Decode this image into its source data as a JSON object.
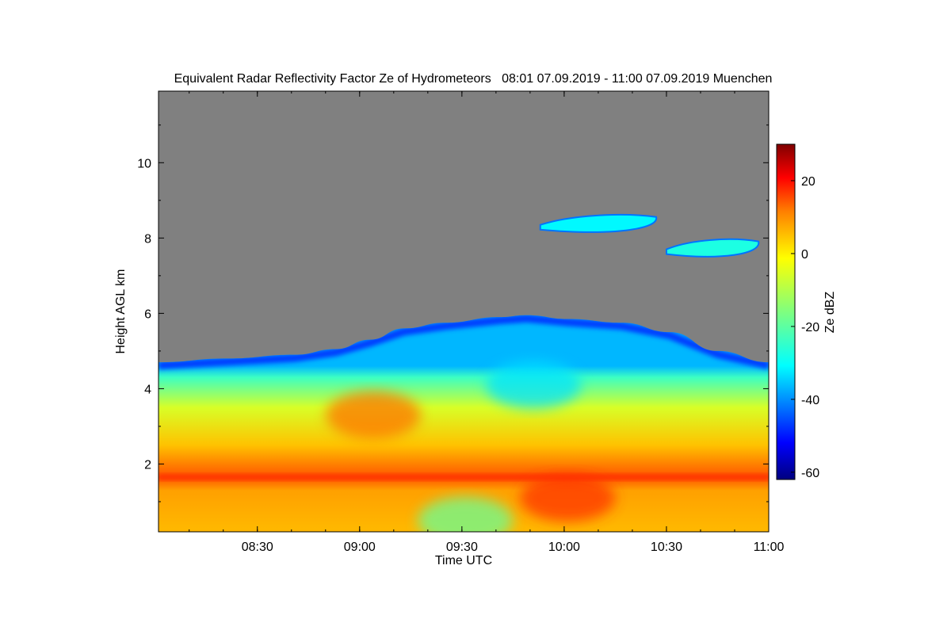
{
  "chart_data": {
    "type": "heatmap",
    "title": "Equivalent Radar Reflectivity Factor Ze of Hydrometeors   08:01 07.09.2019 - 11:00 07.09.2019 Muenchen",
    "xlabel": "Time UTC",
    "ylabel": "Height AGL km",
    "xlim": [
      "08:01",
      "11:00"
    ],
    "ylim": [
      0.2,
      11.9
    ],
    "x_ticks": [
      {
        "value": 29,
        "label": "08:30"
      },
      {
        "value": 59,
        "label": "09:00"
      },
      {
        "value": 89,
        "label": "09:30"
      },
      {
        "value": 119,
        "label": "10:00"
      },
      {
        "value": 149,
        "label": "10:30"
      },
      {
        "value": 179,
        "label": "11:00"
      }
    ],
    "y_ticks": [
      {
        "value": 2,
        "label": "2"
      },
      {
        "value": 4,
        "label": "4"
      },
      {
        "value": 6,
        "label": "6"
      },
      {
        "value": 8,
        "label": "8"
      },
      {
        "value": 10,
        "label": "10"
      }
    ],
    "colorbar": {
      "label": "Ze dBZ",
      "range": [
        -62,
        30
      ],
      "ticks": [
        {
          "value": 20,
          "label": "20"
        },
        {
          "value": 0,
          "label": "0"
        },
        {
          "value": -20,
          "label": "-20"
        },
        {
          "value": -40,
          "label": "-40"
        },
        {
          "value": -60,
          "label": "-60"
        }
      ],
      "colormap": [
        "#00007f",
        "#0000ff",
        "#007fff",
        "#00ffff",
        "#7fff7f",
        "#ffff00",
        "#ff7f00",
        "#ff0000",
        "#7f0000"
      ]
    },
    "no_signal_color": "#808080",
    "cloud_top_km": [
      {
        "t": 0,
        "h": 4.7
      },
      {
        "t": 20,
        "h": 4.8
      },
      {
        "t": 40,
        "h": 4.9
      },
      {
        "t": 52,
        "h": 5.05
      },
      {
        "t": 62,
        "h": 5.3
      },
      {
        "t": 72,
        "h": 5.6
      },
      {
        "t": 84,
        "h": 5.75
      },
      {
        "t": 100,
        "h": 5.9
      },
      {
        "t": 108,
        "h": 5.95
      },
      {
        "t": 120,
        "h": 5.85
      },
      {
        "t": 136,
        "h": 5.75
      },
      {
        "t": 150,
        "h": 5.5
      },
      {
        "t": 164,
        "h": 5.0
      },
      {
        "t": 179,
        "h": 4.7
      }
    ],
    "cirrus_patches": [
      {
        "t_start": 112,
        "t_end": 146,
        "h_center": 8.35,
        "ze_dbz": -28
      },
      {
        "t_start": 149,
        "t_end": 176,
        "h_center": 7.7,
        "ze_dbz": -25
      }
    ],
    "profile_ze_dbz": [
      {
        "h": 0.3,
        "ze": 2
      },
      {
        "h": 1.3,
        "ze": 4
      },
      {
        "h": 1.65,
        "ze": 11
      },
      {
        "h": 2.5,
        "ze": 1
      },
      {
        "h": 3.5,
        "ze": -8
      },
      {
        "h": 4.3,
        "ze": -22
      },
      {
        "h": 4.6,
        "ze": -34
      }
    ],
    "melting_layer_km": 1.65,
    "features": [
      {
        "t_center": 63,
        "h_center": 3.3,
        "ze_dbz": 8
      },
      {
        "t_center": 110,
        "h_center": 4.1,
        "ze_dbz": -30
      },
      {
        "t_center": 90,
        "h_center": 0.5,
        "ze_dbz": -18
      },
      {
        "t_center": 120,
        "h_center": 1.1,
        "ze_dbz": 14
      }
    ]
  }
}
